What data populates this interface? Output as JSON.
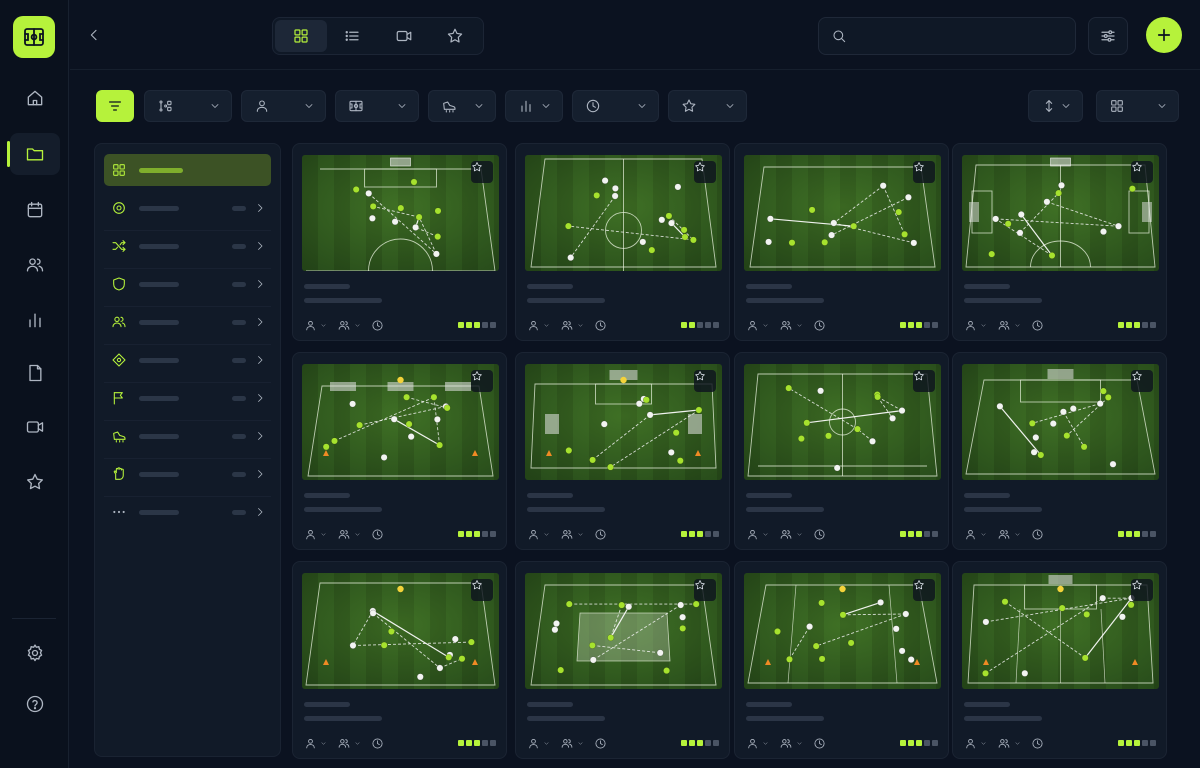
{
  "app": {
    "accent_color": "#b6f23b",
    "background_color": "#0b1220",
    "logo_icon": "tactics-board-icon"
  },
  "rail": {
    "items": [
      {
        "icon": "home-icon",
        "active": false
      },
      {
        "icon": "folder-icon",
        "active": true
      },
      {
        "icon": "calendar-icon",
        "active": false
      },
      {
        "icon": "users-icon",
        "active": false
      },
      {
        "icon": "bar-chart-icon",
        "active": false
      },
      {
        "icon": "clipboard-icon",
        "active": false
      },
      {
        "icon": "video-icon",
        "active": false
      },
      {
        "icon": "star-icon",
        "active": false
      }
    ],
    "bottom": [
      {
        "icon": "settings-icon"
      },
      {
        "icon": "help-icon"
      }
    ]
  },
  "topbar": {
    "back_icon": "chevron-left-icon",
    "views": [
      {
        "icon": "grid-icon",
        "active": true
      },
      {
        "icon": "list-icon",
        "active": false
      },
      {
        "icon": "video-icon",
        "active": false
      },
      {
        "icon": "star-icon",
        "active": false
      }
    ],
    "search": {
      "placeholder": "",
      "value": ""
    },
    "tune_icon": "sliders-icon",
    "add_icon": "plus-icon"
  },
  "filters": {
    "dropdowns": [
      {
        "icon": "formation-icon"
      },
      {
        "icon": "person-icon"
      },
      {
        "icon": "pitch-icon"
      },
      {
        "icon": "boot-icon"
      },
      {
        "icon": "bar-chart-icon"
      },
      {
        "icon": "clock-icon"
      },
      {
        "icon": "star-icon"
      }
    ],
    "sort_icon": "sort-icon",
    "layout_icon": "grid-icon"
  },
  "categories": [
    {
      "icon": "grid-icon",
      "active": true
    },
    {
      "icon": "target-icon",
      "active": false
    },
    {
      "icon": "shuffle-icon",
      "active": false
    },
    {
      "icon": "shield-icon",
      "active": false
    },
    {
      "icon": "users-icon",
      "active": false
    },
    {
      "icon": "diamond-target-icon",
      "active": false
    },
    {
      "icon": "flag-icon",
      "active": false
    },
    {
      "icon": "boot-icon",
      "active": false
    },
    {
      "icon": "goalkeeper-glove-icon",
      "active": false
    },
    {
      "icon": "more-icon",
      "active": false
    }
  ],
  "drills": [
    {
      "diagram": "final-third-attack",
      "rating": 3
    },
    {
      "diagram": "midfield-circle",
      "rating": 2
    },
    {
      "diagram": "diagonal-switch",
      "rating": 3
    },
    {
      "diagram": "full-pitch-build",
      "rating": 3
    },
    {
      "diagram": "three-goals",
      "rating": 3
    },
    {
      "diagram": "box-finishing",
      "rating": 3
    },
    {
      "diagram": "half-pitch-shape",
      "rating": 3
    },
    {
      "diagram": "pressing-arc",
      "rating": 3
    },
    {
      "diagram": "rondo-diamond",
      "rating": 3
    },
    {
      "diagram": "small-sided-box",
      "rating": 3
    },
    {
      "diagram": "wide-channels",
      "rating": 3
    },
    {
      "diagram": "crossing-lanes",
      "rating": 3
    }
  ]
}
